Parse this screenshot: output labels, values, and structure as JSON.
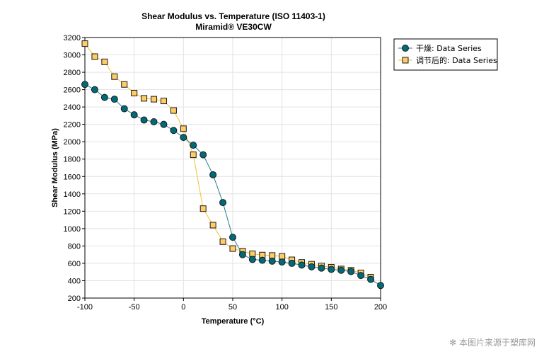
{
  "chart_data": {
    "type": "line",
    "title": "Shear Modulus vs. Temperature (ISO 11403-1)",
    "subtitle": "Miramid® VE30CW",
    "xlabel": "Temperature (°C)",
    "ylabel": "Shear Modulus (MPa)",
    "xlim": [
      -100,
      200
    ],
    "ylim": [
      200,
      3200
    ],
    "xticks": [
      -100,
      -50,
      0,
      50,
      100,
      150,
      200
    ],
    "yticks": [
      200,
      400,
      600,
      800,
      1000,
      1200,
      1400,
      1600,
      1800,
      2000,
      2200,
      2400,
      2600,
      2800,
      3000,
      3200
    ],
    "grid": true,
    "legend_position": "top-right",
    "series": [
      {
        "name": "干燥: Data Series",
        "marker": "circle",
        "line_color": "#2a7f8f",
        "marker_color": "#006b77",
        "x": [
          -100,
          -90,
          -80,
          -70,
          -60,
          -50,
          -40,
          -30,
          -20,
          -10,
          0,
          10,
          20,
          30,
          40,
          50,
          60,
          70,
          80,
          90,
          100,
          110,
          120,
          130,
          140,
          150,
          160,
          170,
          180,
          190,
          200
        ],
        "y": [
          2660,
          2600,
          2510,
          2490,
          2380,
          2310,
          2250,
          2230,
          2200,
          2130,
          2050,
          1960,
          1850,
          1620,
          1300,
          900,
          700,
          645,
          635,
          625,
          615,
          600,
          580,
          560,
          545,
          530,
          520,
          505,
          460,
          415,
          345
        ]
      },
      {
        "name": "调节后的: Data Series",
        "marker": "square",
        "line_color": "#f2c230",
        "marker_color": "#ffcc66",
        "x": [
          -100,
          -90,
          -80,
          -70,
          -60,
          -50,
          -40,
          -30,
          -20,
          -10,
          0,
          10,
          20,
          30,
          40,
          50,
          60,
          70,
          80,
          90,
          100,
          110,
          120,
          130,
          140,
          150,
          160,
          170,
          180,
          190
        ],
        "y": [
          3130,
          2980,
          2920,
          2750,
          2660,
          2560,
          2500,
          2490,
          2470,
          2360,
          2150,
          1850,
          1230,
          1040,
          850,
          770,
          740,
          710,
          695,
          690,
          680,
          640,
          610,
          590,
          570,
          555,
          535,
          520,
          490,
          440
        ]
      }
    ]
  },
  "watermark": "本图片来源于塑库网",
  "watermark_icon": "asterisk-icon"
}
